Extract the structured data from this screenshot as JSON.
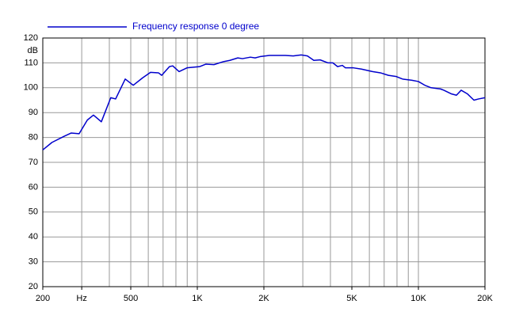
{
  "chart_data": {
    "type": "line",
    "log_x": true,
    "grid": true,
    "y_unit": "dB",
    "xlim": [
      200,
      20000
    ],
    "ylim": [
      20,
      120
    ],
    "xticks": [
      200,
      {
        "value": 300,
        "label": "Hz"
      },
      500,
      {
        "value": 1000,
        "label": "1K"
      },
      {
        "value": 2000,
        "label": "2K"
      },
      {
        "value": 5000,
        "label": "5K"
      },
      {
        "value": 10000,
        "label": "10K"
      },
      {
        "value": 20000,
        "label": "20K"
      }
    ],
    "xgrid": [
      200,
      300,
      400,
      500,
      600,
      700,
      800,
      900,
      1000,
      2000,
      3000,
      4000,
      5000,
      6000,
      7000,
      8000,
      9000,
      10000,
      20000
    ],
    "yticks": [
      20,
      30,
      40,
      50,
      60,
      70,
      80,
      90,
      100,
      110,
      120
    ],
    "legend": "top-left",
    "x": [
      200,
      220,
      250,
      269,
      292,
      318,
      339,
      368,
      406,
      427,
      472,
      513,
      566,
      614,
      667,
      690,
      748,
      774,
      827,
      898,
      1025,
      1094,
      1189,
      1313,
      1403,
      1524,
      1600,
      1738,
      1826,
      1918,
      2118,
      2500,
      2716,
      2946,
      3148,
      3365,
      3594,
      3903,
      4102,
      4309,
      4529,
      4677,
      5083,
      5524,
      6196,
      6732,
      7313,
      7944,
      8478,
      9355,
      9998,
      10689,
      11409,
      12600,
      13030,
      14130,
      14860,
      15610,
      16680,
      17830,
      18720,
      20000
    ],
    "series": [
      {
        "name": "Frequency response 0 degree",
        "color": "#0000cc",
        "values": [
          75,
          78,
          80.5,
          81.8,
          81.5,
          87,
          89,
          86.3,
          96,
          95.5,
          103.5,
          101,
          104,
          106.2,
          106,
          105,
          108.5,
          108.8,
          106.5,
          108,
          108.5,
          109.5,
          109.3,
          110.5,
          111,
          112,
          111.7,
          112.3,
          112,
          112.5,
          113,
          113,
          112.8,
          113.2,
          112.8,
          111,
          111.2,
          110,
          110,
          108.5,
          109,
          108,
          108,
          107.5,
          106.5,
          106,
          105,
          104.5,
          103.5,
          103,
          102.5,
          101,
          100,
          99.5,
          99,
          97.5,
          97,
          99,
          97.5,
          95,
          95.5,
          96
        ]
      }
    ]
  }
}
